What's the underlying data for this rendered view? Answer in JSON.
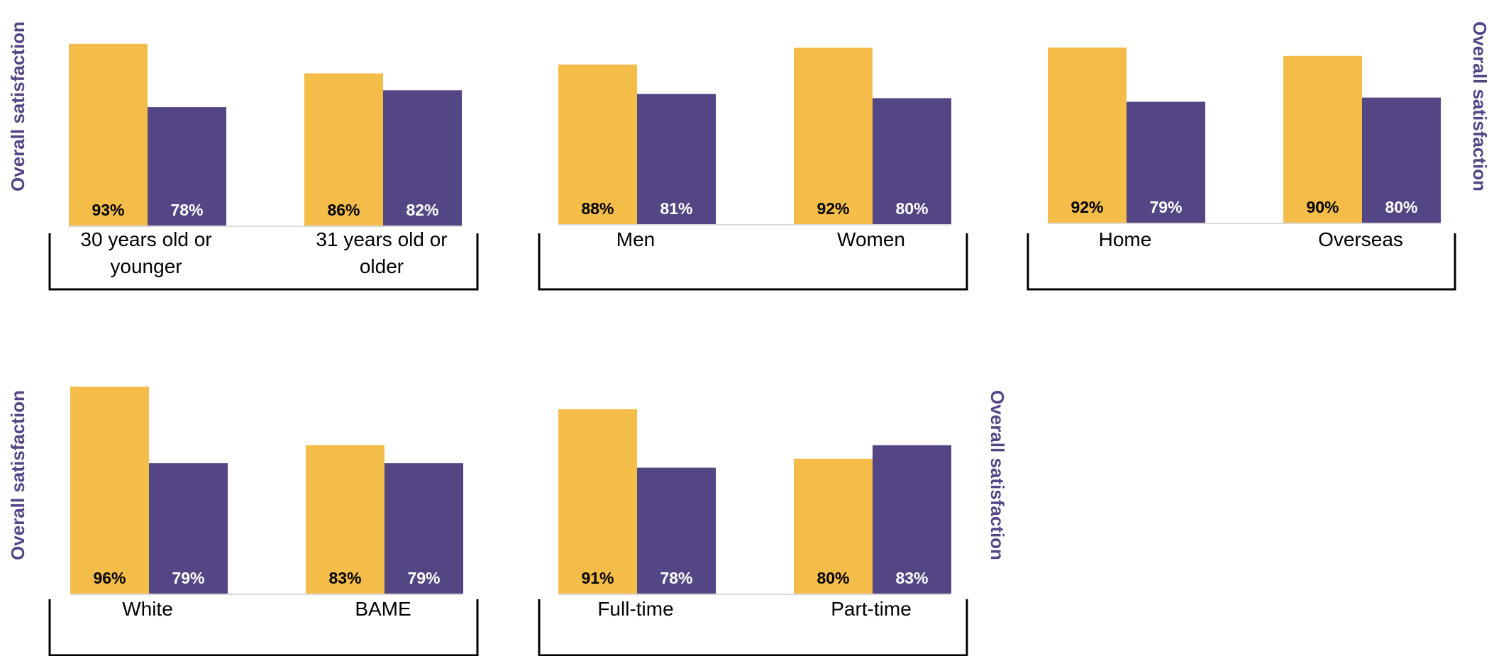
{
  "colors": {
    "series_a": "#F4BD4A",
    "series_b": "#544585",
    "axis_title": "#544585",
    "label_on_a": "#000000",
    "label_on_b": "#ffffff"
  },
  "chart_data": [
    {
      "type": "bar",
      "ylabel": "Overall satisfaction",
      "categories": [
        "30 years old or younger",
        "31 years old or older"
      ],
      "category_lines": [
        [
          "30 years old or",
          "younger"
        ],
        [
          "31 years old or",
          "older"
        ]
      ],
      "series": [
        {
          "values": [
            93,
            78
          ],
          "labels": [
            "93%",
            "78%"
          ]
        },
        {
          "values": [
            86,
            82
          ],
          "labels": [
            "86%",
            "82%"
          ]
        }
      ],
      "ylim": [
        50,
        100
      ],
      "grid": false,
      "legend": "none"
    },
    {
      "type": "bar",
      "ylabel": "",
      "categories": [
        "Men",
        "Women"
      ],
      "category_lines": [
        [
          "Men"
        ],
        [
          "Women"
        ]
      ],
      "series": [
        {
          "values": [
            88,
            81
          ],
          "labels": [
            "88%",
            "81%"
          ]
        },
        {
          "values": [
            92,
            80
          ],
          "labels": [
            "92%",
            "80%"
          ]
        }
      ],
      "ylim": [
        50,
        100
      ],
      "grid": false,
      "legend": "none"
    },
    {
      "type": "bar",
      "ylabel": "Overall satisfaction",
      "categories": [
        "Home",
        "Overseas"
      ],
      "category_lines": [
        [
          "Home"
        ],
        [
          "Overseas"
        ]
      ],
      "series": [
        {
          "values": [
            92,
            79
          ],
          "labels": [
            "92%",
            "79%"
          ]
        },
        {
          "values": [
            90,
            80
          ],
          "labels": [
            "90%",
            "80%"
          ]
        }
      ],
      "ylim": [
        50,
        100
      ],
      "grid": false,
      "legend": "none"
    },
    {
      "type": "bar",
      "ylabel": "Overall satisfaction",
      "categories": [
        "White",
        "BAME"
      ],
      "category_lines": [
        [
          "White"
        ],
        [
          "BAME"
        ]
      ],
      "series": [
        {
          "values": [
            96,
            79
          ],
          "labels": [
            "96%",
            "79%"
          ]
        },
        {
          "values": [
            83,
            79
          ],
          "labels": [
            "83%",
            "79%"
          ]
        }
      ],
      "ylim": [
        50,
        100
      ],
      "grid": false,
      "legend": "none"
    },
    {
      "type": "bar",
      "ylabel": "Overall satisfaction",
      "categories": [
        "Full-time",
        "Part-time"
      ],
      "category_lines": [
        [
          "Full-time"
        ],
        [
          "Part-time"
        ]
      ],
      "series": [
        {
          "values": [
            91,
            78
          ],
          "labels": [
            "91%",
            "78%"
          ]
        },
        {
          "values": [
            80,
            83
          ],
          "labels": [
            "80%",
            "83%"
          ]
        }
      ],
      "ylim": [
        50,
        100
      ],
      "grid": false,
      "legend": "none"
    }
  ]
}
